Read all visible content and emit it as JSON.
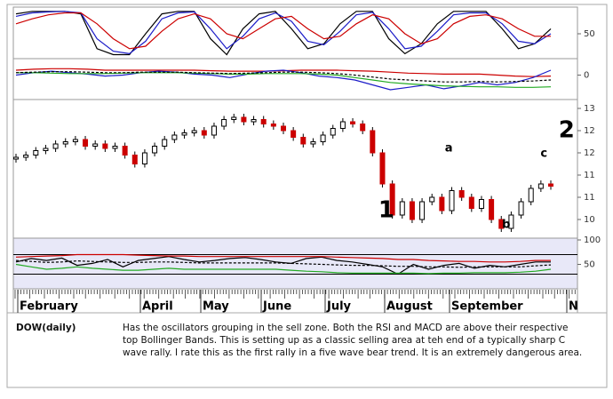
{
  "chart_data": [
    {
      "type": "line",
      "ylim": [
        0,
        100
      ],
      "yticks": [
        50
      ],
      "series": [
        {
          "name": null,
          "color": "#000000",
          "values": [
            90,
            95,
            95,
            95,
            90,
            20,
            8,
            8,
            50,
            90,
            95,
            95,
            40,
            8,
            60,
            90,
            95,
            60,
            20,
            30,
            70,
            95,
            95,
            40,
            10,
            30,
            70,
            95,
            95,
            95,
            60,
            20,
            30,
            60
          ]
        },
        {
          "name": null,
          "color": "#1c1cc8",
          "values": [
            85,
            92,
            94,
            95,
            92,
            40,
            15,
            10,
            35,
            80,
            92,
            94,
            60,
            20,
            45,
            80,
            92,
            75,
            35,
            28,
            55,
            88,
            93,
            60,
            20,
            25,
            55,
            88,
            92,
            92,
            70,
            35,
            30,
            50
          ]
        },
        {
          "name": null,
          "color": "#cc0000",
          "values": [
            70,
            80,
            88,
            92,
            92,
            70,
            40,
            20,
            25,
            55,
            80,
            90,
            80,
            50,
            40,
            60,
            80,
            85,
            60,
            40,
            45,
            70,
            88,
            80,
            50,
            30,
            40,
            70,
            85,
            88,
            80,
            60,
            45,
            45
          ]
        }
      ]
    },
    {
      "type": "line",
      "ylim": [
        -0.5,
        0.3
      ],
      "yticks": [
        0
      ],
      "series": [
        {
          "name": null,
          "color": "#cc0000",
          "values": [
            0.1,
            0.12,
            0.13,
            0.13,
            0.12,
            0.1,
            0.1,
            0.1,
            0.1,
            0.1,
            0.1,
            0.09,
            0.08,
            0.08,
            0.08,
            0.09,
            0.1,
            0.1,
            0.1,
            0.09,
            0.08,
            0.06,
            0.04,
            0.03,
            0.02,
            0.02,
            0.02,
            0.0,
            -0.02,
            -0.03,
            -0.02
          ]
        },
        {
          "name": null,
          "color": "#1c1cc8",
          "values": [
            0,
            0.05,
            0.08,
            0.05,
            0.02,
            -0.02,
            0.0,
            0.05,
            0.08,
            0.06,
            0.02,
            0.0,
            -0.05,
            0.02,
            0.08,
            0.1,
            0.05,
            -0.02,
            -0.05,
            -0.1,
            -0.2,
            -0.3,
            -0.25,
            -0.2,
            -0.28,
            -0.22,
            -0.15,
            -0.2,
            -0.15,
            -0.05,
            0.1
          ]
        },
        {
          "name": null,
          "color": "#22aa22",
          "values": [
            0.05,
            0.05,
            0.04,
            0.03,
            0.03,
            0.03,
            0.04,
            0.05,
            0.05,
            0.05,
            0.04,
            0.03,
            0.02,
            0.02,
            0.03,
            0.03,
            0.03,
            0.02,
            0.0,
            -0.05,
            -0.1,
            -0.15,
            -0.18,
            -0.2,
            -0.22,
            -0.23,
            -0.24,
            -0.24,
            -0.25,
            -0.25,
            -0.24
          ]
        },
        {
          "name": null,
          "color": "#000000",
          "dashed": true,
          "values": [
            0.05,
            0.06,
            0.07,
            0.07,
            0.06,
            0.05,
            0.05,
            0.06,
            0.06,
            0.06,
            0.05,
            0.04,
            0.03,
            0.04,
            0.05,
            0.06,
            0.06,
            0.05,
            0.03,
            0.0,
            -0.04,
            -0.08,
            -0.1,
            -0.12,
            -0.14,
            -0.14,
            -0.13,
            -0.14,
            -0.13,
            -0.12,
            -0.1
          ]
        }
      ]
    },
    {
      "type": "candlestick",
      "ylim": [
        10.2,
        13.2
      ],
      "yticks": [
        13,
        {
          "value": 12.5,
          "label": "12"
        },
        12,
        {
          "value": 11.5,
          "label": "11"
        },
        11,
        {
          "value": 10.5,
          "label": "10"
        }
      ],
      "values": [
        11.9,
        11.95,
        12.05,
        12.1,
        12.2,
        12.25,
        12.3,
        12.15,
        12.2,
        12.1,
        12.15,
        11.95,
        11.75,
        12.0,
        12.15,
        12.3,
        12.4,
        12.45,
        12.5,
        12.4,
        12.6,
        12.75,
        12.8,
        12.7,
        12.75,
        12.65,
        12.6,
        12.5,
        12.35,
        12.2,
        12.25,
        12.4,
        12.55,
        12.7,
        12.65,
        12.5,
        12.0,
        11.3,
        10.6,
        10.9,
        10.5,
        10.9,
        11.0,
        10.7,
        11.15,
        11.0,
        10.75,
        10.95,
        10.5,
        10.3,
        10.6,
        10.9,
        11.2,
        11.3,
        11.25
      ],
      "annotations": [
        {
          "text": "1",
          "x": 37.4,
          "y": 10.7,
          "big": true
        },
        {
          "text": "2",
          "x": 55.6,
          "y": 12.5,
          "big": true
        },
        {
          "text": "a",
          "x": 43.7,
          "y": 12.1
        },
        {
          "text": "b",
          "x": 49.5,
          "y": 10.38
        },
        {
          "text": "c",
          "x": 53.3,
          "y": 11.98
        }
      ]
    },
    {
      "type": "line",
      "ylim": [
        0,
        100
      ],
      "yticks": [
        100,
        50
      ],
      "levels": [
        70,
        30
      ],
      "series": [
        {
          "name": null,
          "color": "#000000",
          "values": [
            55,
            62,
            58,
            63,
            48,
            52,
            60,
            45,
            58,
            62,
            66,
            60,
            55,
            58,
            62,
            64,
            60,
            55,
            52,
            62,
            65,
            58,
            55,
            50,
            45,
            30,
            50,
            40,
            48,
            52,
            42,
            48,
            45,
            50,
            55,
            55
          ]
        },
        {
          "name": null,
          "color": "#cc0000",
          "values": [
            65,
            66,
            67,
            68,
            70,
            70,
            70,
            70,
            69,
            68,
            67,
            67,
            66,
            66,
            66,
            66,
            66,
            66,
            66,
            66,
            66,
            65,
            64,
            63,
            62,
            60,
            60,
            58,
            57,
            56,
            56,
            55,
            55,
            56,
            58,
            58
          ]
        },
        {
          "name": null,
          "color": "#22aa22",
          "values": [
            50,
            45,
            40,
            42,
            45,
            42,
            40,
            38,
            38,
            40,
            42,
            40,
            40,
            40,
            40,
            40,
            40,
            40,
            38,
            36,
            35,
            33,
            32,
            32,
            32,
            32,
            32,
            31,
            32,
            32,
            33,
            33,
            33,
            34,
            36,
            40
          ]
        },
        {
          "name": null,
          "color": "#000000",
          "dashed": true,
          "values": [
            58,
            56,
            54,
            55,
            57,
            56,
            55,
            54,
            54,
            55,
            55,
            54,
            53,
            53,
            53,
            53,
            53,
            53,
            52,
            51,
            50,
            49,
            48,
            48,
            47,
            46,
            46,
            45,
            45,
            44,
            45,
            45,
            45,
            45,
            47,
            49
          ]
        }
      ]
    }
  ],
  "months": [
    "February",
    "April",
    "May",
    "June",
    "July",
    "August",
    "September",
    "N"
  ],
  "commentary": {
    "label": "DOW(daily)",
    "text": "Has the oscillators grouping in the sell zone. Both the RSI and MACD are above their respective top Bollinger Bands. This is setting up as a classic selling area at teh end of a typically sharp C wave rally. I rate this as the first rally in a five wave bear trend. It is an extremely dangerous area."
  }
}
